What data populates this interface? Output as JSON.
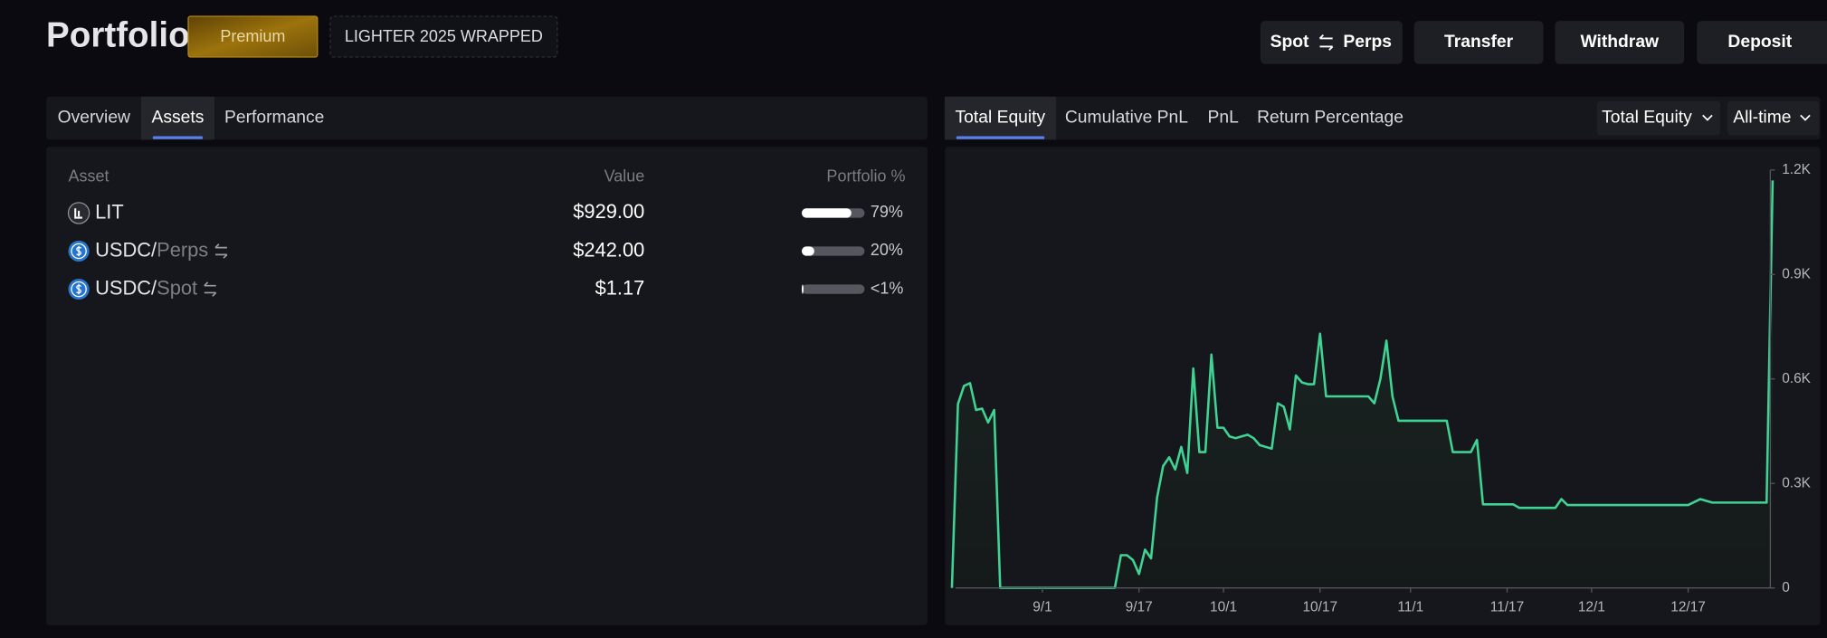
{
  "header": {
    "title": "Portfolio",
    "badge": "Premium",
    "wrapped": "LIGHTER 2025 WRAPPED",
    "toggle": [
      "Spot",
      "Perps"
    ],
    "actions": [
      "Transfer",
      "Withdraw",
      "Deposit"
    ]
  },
  "assets_panel": {
    "tabs": [
      "Overview",
      "Assets",
      "Performance"
    ],
    "active_tab": 1,
    "columns": [
      "Asset",
      "Value",
      "Portfolio %"
    ],
    "rows": [
      {
        "asset": "LIT",
        "value": "$929.00",
        "share": 79,
        "share_label": "79%"
      },
      {
        "asset": "USDC",
        "separator": "/",
        "venue": "Perps",
        "value": "$242.00",
        "share": 20,
        "share_label": "20%"
      },
      {
        "asset": "USDC",
        "separator": "/",
        "venue": "Spot",
        "value": "$1.17",
        "share": 0.5,
        "share_label": "<1%"
      }
    ]
  },
  "chart_panel": {
    "tabs": [
      "Total Equity",
      "Cumulative PnL",
      "PnL",
      "Return Percentage"
    ],
    "active_tab": 0,
    "dropdowns": [
      "Total Equity",
      "All-time"
    ]
  },
  "chart_data": {
    "type": "line",
    "area": true,
    "color": "#3fd394",
    "x": [
      "8/17",
      "8/18",
      "8/19",
      "8/20",
      "8/21",
      "8/22",
      "8/23",
      "8/24",
      "8/25",
      "9/13",
      "9/14",
      "9/15",
      "9/16",
      "9/17",
      "9/18",
      "9/19",
      "9/20",
      "9/21",
      "9/22",
      "9/23",
      "9/24",
      "9/25",
      "9/26",
      "9/27",
      "9/28",
      "9/29",
      "9/30",
      "10/1",
      "10/2",
      "10/3",
      "10/4",
      "10/5",
      "10/6",
      "10/7",
      "10/8",
      "10/9",
      "10/10",
      "10/11",
      "10/12",
      "10/13",
      "10/14",
      "10/15",
      "10/16",
      "10/17",
      "10/18",
      "10/25",
      "10/26",
      "10/27",
      "10/28",
      "10/29",
      "10/30",
      "11/7",
      "11/8",
      "11/11",
      "11/12",
      "11/13",
      "11/18",
      "11/19",
      "11/25",
      "11/26",
      "11/27",
      "12/17",
      "12/19",
      "12/21",
      "12/30",
      "12/31"
    ],
    "values": [
      0,
      528,
      580,
      588,
      511,
      515,
      475,
      511,
      0,
      0,
      94,
      94,
      80,
      40,
      110,
      85,
      260,
      350,
      375,
      340,
      405,
      330,
      630,
      390,
      390,
      670,
      460,
      460,
      435,
      430,
      435,
      440,
      430,
      410,
      405,
      400,
      530,
      520,
      455,
      610,
      590,
      585,
      585,
      730,
      550,
      550,
      530,
      600,
      710,
      550,
      480,
      480,
      390,
      390,
      425,
      240,
      240,
      230,
      230,
      255,
      238,
      238,
      255,
      245,
      245,
      1170
    ],
    "xlim": [
      "8/17",
      "12/31"
    ],
    "xticks": [
      "9/1",
      "9/17",
      "10/1",
      "10/17",
      "11/1",
      "11/17",
      "12/1",
      "12/17"
    ],
    "ylim": [
      0,
      1200
    ],
    "yticks": [
      0,
      {
        "value": 300,
        "label": "0.3K"
      },
      {
        "value": 600,
        "label": "0.6K"
      },
      {
        "value": 900,
        "label": "0.9K"
      },
      {
        "value": 1200,
        "label": "1.2K"
      }
    ]
  }
}
